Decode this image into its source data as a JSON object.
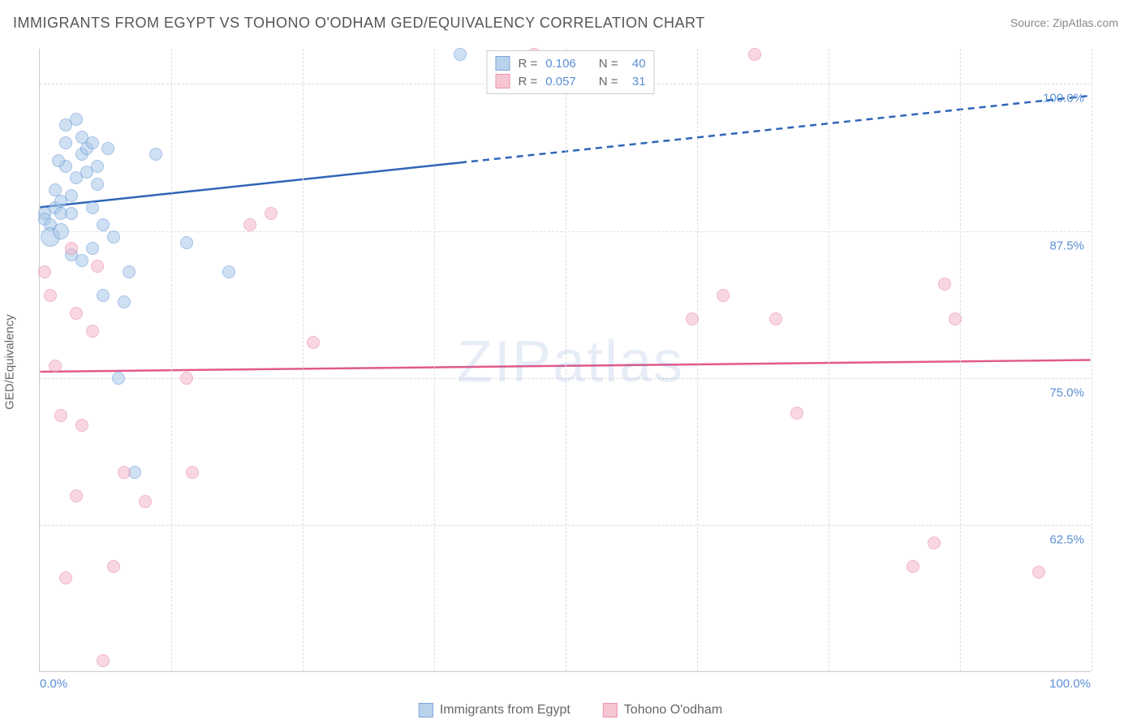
{
  "title": "IMMIGRANTS FROM EGYPT VS TOHONO O'ODHAM GED/EQUIVALENCY CORRELATION CHART",
  "source": "Source: ZipAtlas.com",
  "ylabel": "GED/Equivalency",
  "watermark_zip": "ZIP",
  "watermark_atlas": "atlas",
  "chart": {
    "type": "scatter",
    "background_color": "#ffffff",
    "grid_color": "#dddddd",
    "axis_color": "#cccccc",
    "xlim": [
      0,
      100
    ],
    "ylim": [
      50,
      103
    ],
    "x_ticks": [
      0,
      100
    ],
    "x_tick_labels": [
      "0.0%",
      "100.0%"
    ],
    "y_ticks": [
      62.5,
      75.0,
      87.5,
      100.0
    ],
    "y_tick_labels": [
      "62.5%",
      "75.0%",
      "87.5%",
      "100.0%"
    ],
    "x_gridlines": [
      12.5,
      25,
      37.5,
      50,
      62.5,
      75,
      87.5,
      100
    ],
    "label_fontsize": 15,
    "label_color": "#5b8fd4",
    "title_fontsize": 18,
    "title_color": "#555555"
  },
  "series": [
    {
      "name": "Immigrants from Egypt",
      "r_value": "0.106",
      "n_value": "40",
      "fill_color": "#a8c7e8",
      "fill_opacity": 0.55,
      "stroke_color": "#5b8fd4",
      "marker_radius": 8,
      "trend": {
        "y_start": 89.5,
        "y_end": 99.0,
        "solid_until_x": 40,
        "line_color": "#2f65b8",
        "line_width": 2.5
      },
      "points": [
        {
          "x": 0.5,
          "y": 89
        },
        {
          "x": 0.5,
          "y": 88.5
        },
        {
          "x": 1,
          "y": 88
        },
        {
          "x": 1.5,
          "y": 89.5
        },
        {
          "x": 1.5,
          "y": 91
        },
        {
          "x": 2,
          "y": 90
        },
        {
          "x": 2,
          "y": 89
        },
        {
          "x": 2.5,
          "y": 95
        },
        {
          "x": 2.5,
          "y": 93
        },
        {
          "x": 3,
          "y": 89
        },
        {
          "x": 3,
          "y": 85.5
        },
        {
          "x": 3.5,
          "y": 92
        },
        {
          "x": 3.5,
          "y": 97
        },
        {
          "x": 4,
          "y": 94
        },
        {
          "x": 4,
          "y": 95.5
        },
        {
          "x": 4.5,
          "y": 94.5
        },
        {
          "x": 4.5,
          "y": 92.5
        },
        {
          "x": 5,
          "y": 95
        },
        {
          "x": 5,
          "y": 86
        },
        {
          "x": 5.5,
          "y": 93
        },
        {
          "x": 5.5,
          "y": 91.5
        },
        {
          "x": 6,
          "y": 82
        },
        {
          "x": 6,
          "y": 88
        },
        {
          "x": 7,
          "y": 87
        },
        {
          "x": 7.5,
          "y": 75
        },
        {
          "x": 8,
          "y": 81.5
        },
        {
          "x": 8.5,
          "y": 84
        },
        {
          "x": 9,
          "y": 67
        },
        {
          "x": 11,
          "y": 94
        },
        {
          "x": 14,
          "y": 86.5
        },
        {
          "x": 18,
          "y": 84
        },
        {
          "x": 40,
          "y": 102.5
        },
        {
          "x": 1,
          "y": 87,
          "r": 12
        },
        {
          "x": 2,
          "y": 87.5,
          "r": 10
        },
        {
          "x": 3,
          "y": 90.5
        },
        {
          "x": 6.5,
          "y": 94.5
        },
        {
          "x": 4,
          "y": 85
        },
        {
          "x": 5,
          "y": 89.5
        },
        {
          "x": 2.5,
          "y": 96.5
        },
        {
          "x": 1.8,
          "y": 93.5
        }
      ]
    },
    {
      "name": "Tohono O'odham",
      "r_value": "0.057",
      "n_value": "31",
      "fill_color": "#f4b8c9",
      "fill_opacity": 0.55,
      "stroke_color": "#e87ba0",
      "marker_radius": 8,
      "trend": {
        "y_start": 75.5,
        "y_end": 76.5,
        "solid_until_x": 100,
        "line_color": "#e25a8a",
        "line_width": 2.5
      },
      "points": [
        {
          "x": 0.5,
          "y": 84
        },
        {
          "x": 1,
          "y": 82
        },
        {
          "x": 1.5,
          "y": 76
        },
        {
          "x": 2,
          "y": 71.8
        },
        {
          "x": 2.5,
          "y": 58
        },
        {
          "x": 3,
          "y": 86
        },
        {
          "x": 3.5,
          "y": 65
        },
        {
          "x": 3.5,
          "y": 80.5
        },
        {
          "x": 4,
          "y": 71
        },
        {
          "x": 5,
          "y": 79
        },
        {
          "x": 5.5,
          "y": 84.5
        },
        {
          "x": 6,
          "y": 51
        },
        {
          "x": 7,
          "y": 59
        },
        {
          "x": 8,
          "y": 67
        },
        {
          "x": 10,
          "y": 64.5
        },
        {
          "x": 14,
          "y": 75
        },
        {
          "x": 14.5,
          "y": 67
        },
        {
          "x": 20,
          "y": 88
        },
        {
          "x": 22,
          "y": 89
        },
        {
          "x": 26,
          "y": 78
        },
        {
          "x": 47,
          "y": 102.5
        },
        {
          "x": 62,
          "y": 80
        },
        {
          "x": 65,
          "y": 82
        },
        {
          "x": 68,
          "y": 102.5
        },
        {
          "x": 70,
          "y": 80
        },
        {
          "x": 72,
          "y": 72
        },
        {
          "x": 83,
          "y": 59
        },
        {
          "x": 85,
          "y": 61
        },
        {
          "x": 86,
          "y": 83
        },
        {
          "x": 87,
          "y": 80
        },
        {
          "x": 95,
          "y": 58.5
        }
      ]
    }
  ],
  "legend_top": {
    "r_label": "R =",
    "n_label": "N ="
  },
  "legend_bottom": {
    "items": [
      "Immigrants from Egypt",
      "Tohono O'odham"
    ]
  }
}
